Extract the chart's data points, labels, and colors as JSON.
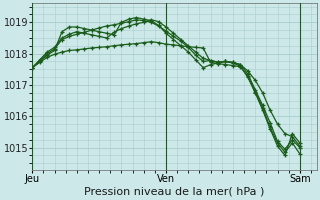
{
  "background_color": "#cce8e8",
  "grid_color": "#aacccc",
  "line_color": "#1a5c1a",
  "marker_color": "#1a5c1a",
  "ylabel_ticks": [
    1015,
    1016,
    1017,
    1018,
    1019
  ],
  "ylim": [
    1014.3,
    1019.6
  ],
  "xlabel": "Pression niveau de la mer( hPa )",
  "xlabel_fontsize": 8,
  "tick_fontsize": 7,
  "xtick_labels": [
    "Jeu",
    "Ven",
    "Sam"
  ],
  "xtick_positions": [
    0,
    24,
    48
  ],
  "xlim": [
    0,
    51
  ],
  "series": [
    [
      1017.55,
      1017.75,
      1017.95,
      1018.1,
      1018.7,
      1018.85,
      1018.85,
      1018.8,
      1018.75,
      1018.7,
      1018.65,
      1018.6,
      1019.0,
      1019.1,
      1019.15,
      1019.1,
      1019.05,
      1018.9,
      1018.65,
      1018.45,
      1018.25,
      1018.05,
      1017.8,
      1017.55,
      1017.65,
      1017.7,
      1017.75,
      1017.7,
      1017.6,
      1017.25,
      1016.75,
      1016.2,
      1015.6,
      1015.05,
      1014.75,
      1015.45,
      1015.15
    ],
    [
      1017.55,
      1017.8,
      1018.05,
      1018.2,
      1018.5,
      1018.62,
      1018.7,
      1018.65,
      1018.6,
      1018.55,
      1018.5,
      1018.68,
      1018.8,
      1018.88,
      1018.95,
      1019.0,
      1019.08,
      1019.02,
      1018.85,
      1018.65,
      1018.45,
      1018.25,
      1018.05,
      1017.85,
      1017.78,
      1017.73,
      1017.75,
      1017.72,
      1017.65,
      1017.45,
      1017.15,
      1016.75,
      1016.2,
      1015.75,
      1015.45,
      1015.35,
      1015.05
    ],
    [
      1017.55,
      1017.78,
      1018.0,
      1018.15,
      1018.45,
      1018.55,
      1018.62,
      1018.68,
      1018.75,
      1018.82,
      1018.88,
      1018.92,
      1018.97,
      1019.02,
      1019.08,
      1019.05,
      1019.0,
      1018.88,
      1018.72,
      1018.55,
      1018.4,
      1018.2,
      1017.95,
      1017.75,
      1017.78,
      1017.72,
      1017.75,
      1017.72,
      1017.65,
      1017.35,
      1016.85,
      1016.35,
      1015.8,
      1015.2,
      1014.95,
      1015.25,
      1015.0
    ],
    [
      1017.55,
      1017.72,
      1017.88,
      1017.98,
      1018.05,
      1018.1,
      1018.12,
      1018.15,
      1018.18,
      1018.2,
      1018.22,
      1018.25,
      1018.28,
      1018.3,
      1018.32,
      1018.35,
      1018.38,
      1018.35,
      1018.3,
      1018.28,
      1018.25,
      1018.22,
      1018.2,
      1018.18,
      1017.72,
      1017.68,
      1017.65,
      1017.62,
      1017.58,
      1017.28,
      1016.78,
      1016.28,
      1015.65,
      1015.15,
      1014.85,
      1015.15,
      1014.8
    ]
  ]
}
